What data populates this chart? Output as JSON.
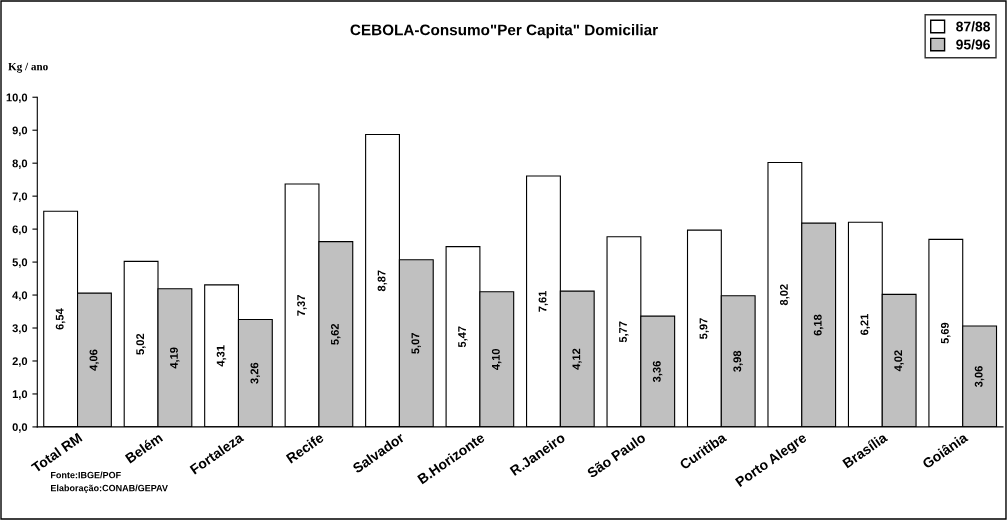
{
  "chart_data": {
    "type": "bar",
    "title": "CEBOLA-Consumo\"Per Capita\" Domiciliar",
    "ylabel": "Kg / ano",
    "categories": [
      "Total RM",
      "Belém",
      "Fortaleza",
      "Recife",
      "Salvador",
      "B.Horizonte",
      "R.Janeiro",
      "São Paulo",
      "Curitiba",
      "Porto Alegre",
      "Brasília",
      "Goiânia"
    ],
    "series": [
      {
        "name": "87/88",
        "color": "#ffffff",
        "values": [
          6.54,
          5.02,
          4.31,
          7.37,
          8.87,
          5.47,
          7.61,
          5.77,
          5.97,
          8.02,
          6.21,
          5.69
        ],
        "value_labels": [
          "6,54",
          "5,02",
          "4,31",
          "7,37",
          "8,87",
          "5,47",
          "7,61",
          "5,77",
          "5,97",
          "8,02",
          "6,21",
          "5,69"
        ]
      },
      {
        "name": "95/96",
        "color": "#c0c0c0",
        "values": [
          4.06,
          4.19,
          3.26,
          5.62,
          5.07,
          4.1,
          4.12,
          3.36,
          3.98,
          6.18,
          4.02,
          3.06
        ],
        "value_labels": [
          "4,06",
          "4,19",
          "3,26",
          "5,62",
          "5,07",
          "4,10",
          "4,12",
          "3,36",
          "3,98",
          "6,18",
          "4,02",
          "3,06"
        ]
      }
    ],
    "ylim": [
      0,
      10
    ],
    "yticks": [
      {
        "value": 0,
        "label": "0,0"
      },
      {
        "value": 1,
        "label": "1,0"
      },
      {
        "value": 2,
        "label": "2,0"
      },
      {
        "value": 3,
        "label": "3,0"
      },
      {
        "value": 4,
        "label": "4,0"
      },
      {
        "value": 5,
        "label": "5,0"
      },
      {
        "value": 6,
        "label": "6,0"
      },
      {
        "value": 7,
        "label": "7,0"
      },
      {
        "value": 8,
        "label": "8,0"
      },
      {
        "value": 9,
        "label": "9,0"
      },
      {
        "value": 10,
        "label": "10,0"
      }
    ],
    "grid": false,
    "legend": "top right",
    "annotations": [
      "Fonte:IBGE/POF",
      "Elaboração:CONAB/GEPAV"
    ]
  }
}
